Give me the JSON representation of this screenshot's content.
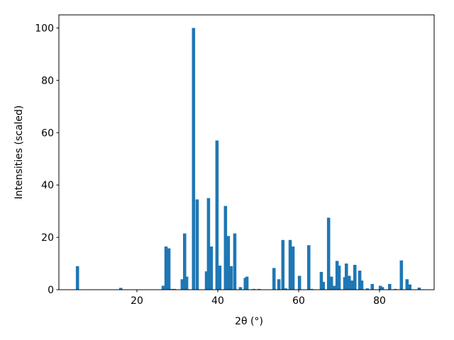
{
  "chart_data": {
    "type": "bar",
    "xlabel": "2θ (°)",
    "ylabel": "Intensities (scaled)",
    "color": "#1f77b4",
    "bar_width": 0.8,
    "x": [
      5.3,
      16,
      26.5,
      27.2,
      27.9,
      28.6,
      29.3,
      31.2,
      31.8,
      32.3,
      34.0,
      34.9,
      37.2,
      37.7,
      38.4,
      39.8,
      40.5,
      41.9,
      42.6,
      43.3,
      44.2,
      45.6,
      46.8,
      47.2,
      48.9,
      50.2,
      53.9,
      55.1,
      56.1,
      56.8,
      57.9,
      58.6,
      60.2,
      62.5,
      63.2,
      65.6,
      66.1,
      67.4,
      68.1,
      68.8,
      69.5,
      70.0,
      71.4,
      71.8,
      72.5,
      73.2,
      73.9,
      75.1,
      75.6,
      77.0,
      78.2,
      80.2,
      80.7,
      82.5,
      83.9,
      85.4,
      86.8,
      87.5,
      89.8
    ],
    "values": [
      9,
      0.7,
      1.5,
      16.5,
      15.8,
      0.3,
      0.3,
      4,
      21.5,
      5,
      100,
      34.5,
      7,
      35,
      16.5,
      57,
      9.2,
      32,
      20.5,
      9,
      21.5,
      1,
      4.5,
      5,
      0.3,
      0.3,
      8.3,
      4,
      19,
      0.5,
      19,
      16.5,
      5.3,
      17,
      0.3,
      6.8,
      3,
      27.5,
      5,
      1.5,
      11,
      9.2,
      4.8,
      10,
      5.3,
      3.5,
      9.5,
      7.3,
      3.5,
      0.5,
      2.2,
      1.5,
      1,
      2.2,
      0.3,
      11.2,
      4,
      2,
      0.8
    ],
    "xlim": [
      0.7,
      93.5
    ],
    "ylim": [
      0,
      105
    ],
    "xticks": [
      20,
      40,
      60,
      80
    ],
    "yticks": [
      0,
      20,
      40,
      60,
      80,
      100
    ]
  }
}
